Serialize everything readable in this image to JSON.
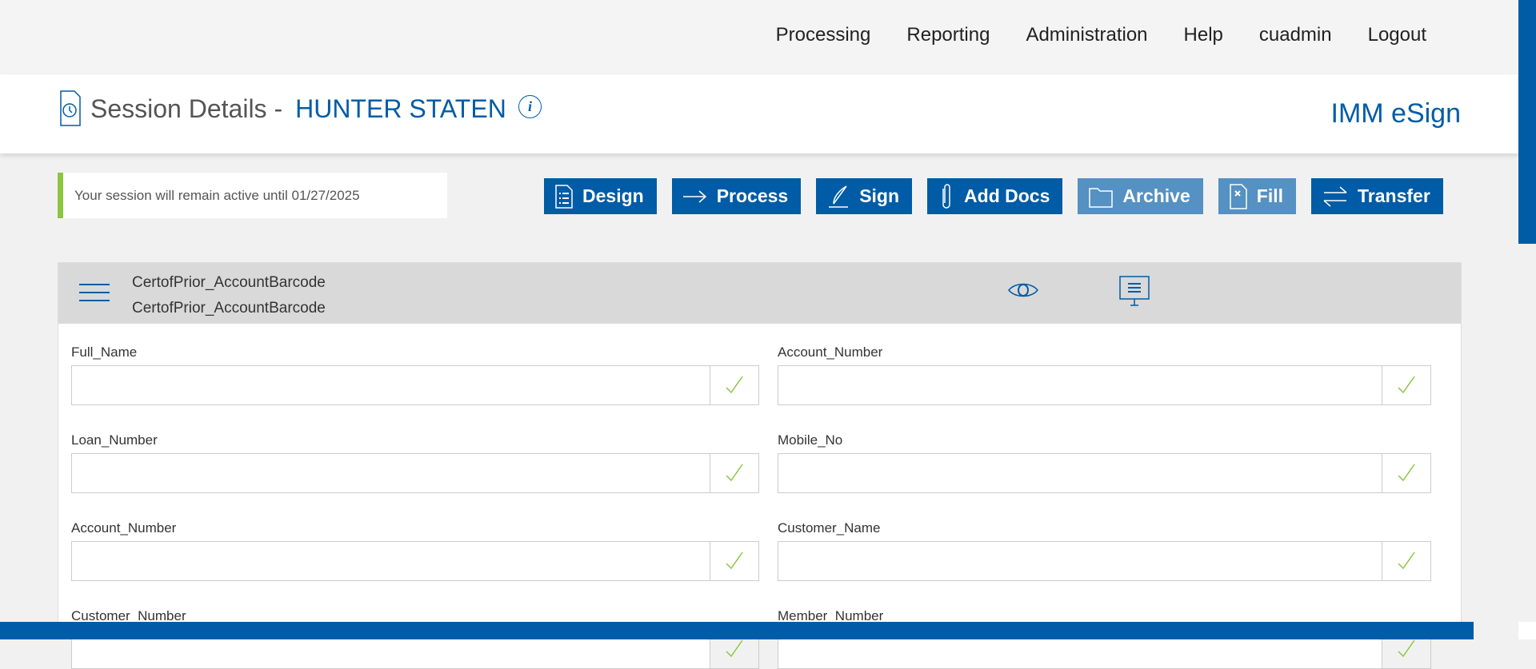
{
  "nav": [
    "Processing",
    "Reporting",
    "Administration",
    "Help",
    "cuadmin",
    "Logout"
  ],
  "header": {
    "title": "Session Details -",
    "name": "HUNTER STATEN",
    "info": "i",
    "brand": "IMM eSign",
    "icon": "session-history-icon"
  },
  "notice": "Your session will remain active until 01/27/2025",
  "colors": {
    "primary": "#005ca6",
    "disabled": "#5591c2",
    "accent": "#8cc63f"
  },
  "buttons": [
    {
      "label": "Design",
      "icon": "list-doc-icon",
      "enabled": true
    },
    {
      "label": "Process",
      "icon": "arrow-right-icon",
      "enabled": true
    },
    {
      "label": "Sign",
      "icon": "pen-icon",
      "enabled": true
    },
    {
      "label": "Add Docs",
      "icon": "paperclip-icon",
      "enabled": true
    },
    {
      "label": "Archive",
      "icon": "folder-icon",
      "enabled": false
    },
    {
      "label": "Fill",
      "icon": "doc-x-icon",
      "enabled": false
    },
    {
      "label": "Transfer",
      "icon": "transfer-icon",
      "enabled": true
    }
  ],
  "document": {
    "name1": "CertofPrior_AccountBarcode",
    "name2": "CertofPrior_AccountBarcode"
  },
  "fields": [
    {
      "label": "Full_Name",
      "value": ""
    },
    {
      "label": "Account_Number",
      "value": ""
    },
    {
      "label": "Loan_Number",
      "value": ""
    },
    {
      "label": "Mobile_No",
      "value": ""
    },
    {
      "label": "Account_Number",
      "value": ""
    },
    {
      "label": "Customer_Name",
      "value": ""
    },
    {
      "label": "Customer_Number",
      "value": ""
    },
    {
      "label": "Member_Number",
      "value": ""
    }
  ]
}
